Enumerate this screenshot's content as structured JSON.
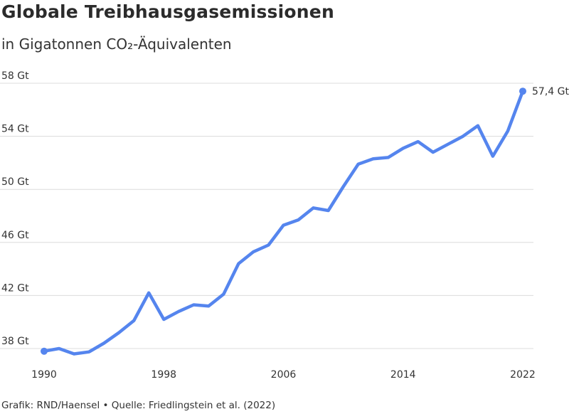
{
  "chart_data": {
    "type": "line",
    "title": "Globale Treibhausgasemissionen",
    "subtitle": "in Gigatonnen CO₂-Äquivalenten",
    "source": "Grafik: RND/Haensel • Quelle: Friedlingstein et al. (2022)",
    "xlabel": "",
    "ylabel": "",
    "x_ticks": [
      1990,
      1998,
      2006,
      2014,
      2022
    ],
    "y_ticks": [
      38,
      42,
      46,
      50,
      54,
      58
    ],
    "y_tick_labels": [
      "38 Gt",
      "42 Gt",
      "46 Gt",
      "50 Gt",
      "54 Gt",
      "58 Gt"
    ],
    "xlim": [
      1990,
      2022
    ],
    "ylim": [
      38,
      58
    ],
    "grid": "horizontal",
    "end_label": "57,4 Gt",
    "color": "#5585ee",
    "series": [
      {
        "x": [
          1990,
          1991,
          1992,
          1993,
          1994,
          1995,
          1996,
          1997,
          1998,
          1999,
          2000,
          2001,
          2002,
          2003,
          2004,
          2005,
          2006,
          2007,
          2008,
          2009,
          2010,
          2011,
          2012,
          2013,
          2014,
          2015,
          2016,
          2017,
          2018,
          2019,
          2020,
          2021,
          2022
        ],
        "values": [
          37.8,
          38.0,
          37.6,
          37.75,
          38.4,
          39.2,
          40.1,
          42.2,
          40.2,
          40.8,
          41.3,
          41.2,
          42.1,
          44.4,
          45.3,
          45.8,
          47.3,
          47.7,
          48.6,
          48.4,
          50.2,
          51.9,
          52.3,
          52.4,
          53.1,
          53.6,
          52.8,
          53.4,
          54.0,
          54.8,
          52.5,
          54.4,
          57.4
        ]
      }
    ]
  }
}
